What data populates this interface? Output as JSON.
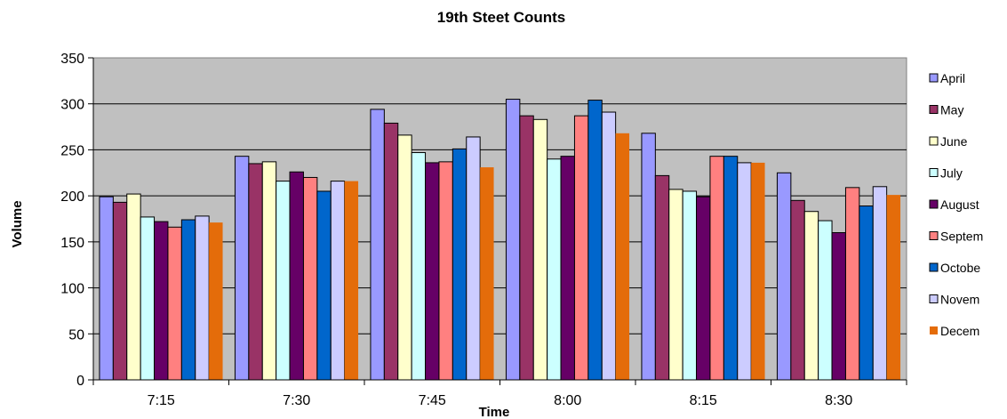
{
  "chart_data": {
    "type": "bar",
    "title": "19th Steet Counts",
    "xlabel": "Time",
    "ylabel": "Volume",
    "ylim": [
      0,
      350
    ],
    "yticks": [
      0,
      50,
      100,
      150,
      200,
      250,
      300,
      350
    ],
    "grid": true,
    "legend_position": "right",
    "categories": [
      "7:15",
      "7:30",
      "7:45",
      "8:00",
      "8:15",
      "8:30"
    ],
    "series": [
      {
        "name": "April",
        "color": "#9999ff",
        "values": [
          199,
          243,
          294,
          305,
          268,
          225
        ]
      },
      {
        "name": "May",
        "color": "#993366",
        "values": [
          193,
          235,
          279,
          287,
          222,
          195
        ]
      },
      {
        "name": "June",
        "color": "#ffffcc",
        "values": [
          202,
          237,
          266,
          283,
          207,
          183
        ]
      },
      {
        "name": "July",
        "color": "#ccffff",
        "values": [
          177,
          216,
          247,
          240,
          205,
          173
        ]
      },
      {
        "name": "August",
        "color": "#660066",
        "values": [
          172,
          226,
          236,
          243,
          199,
          160
        ]
      },
      {
        "name": "Septem",
        "color": "#ff8080",
        "values": [
          166,
          220,
          237,
          287,
          243,
          209
        ]
      },
      {
        "name": "Octobe",
        "color": "#0066cc",
        "values": [
          174,
          205,
          251,
          304,
          243,
          189
        ]
      },
      {
        "name": "Novem",
        "color": "#ccccff",
        "values": [
          178,
          216,
          264,
          291,
          236,
          210
        ]
      },
      {
        "name": "Decem",
        "color": "#e46c0a",
        "values": [
          171,
          216,
          231,
          268,
          236,
          201
        ]
      }
    ]
  }
}
